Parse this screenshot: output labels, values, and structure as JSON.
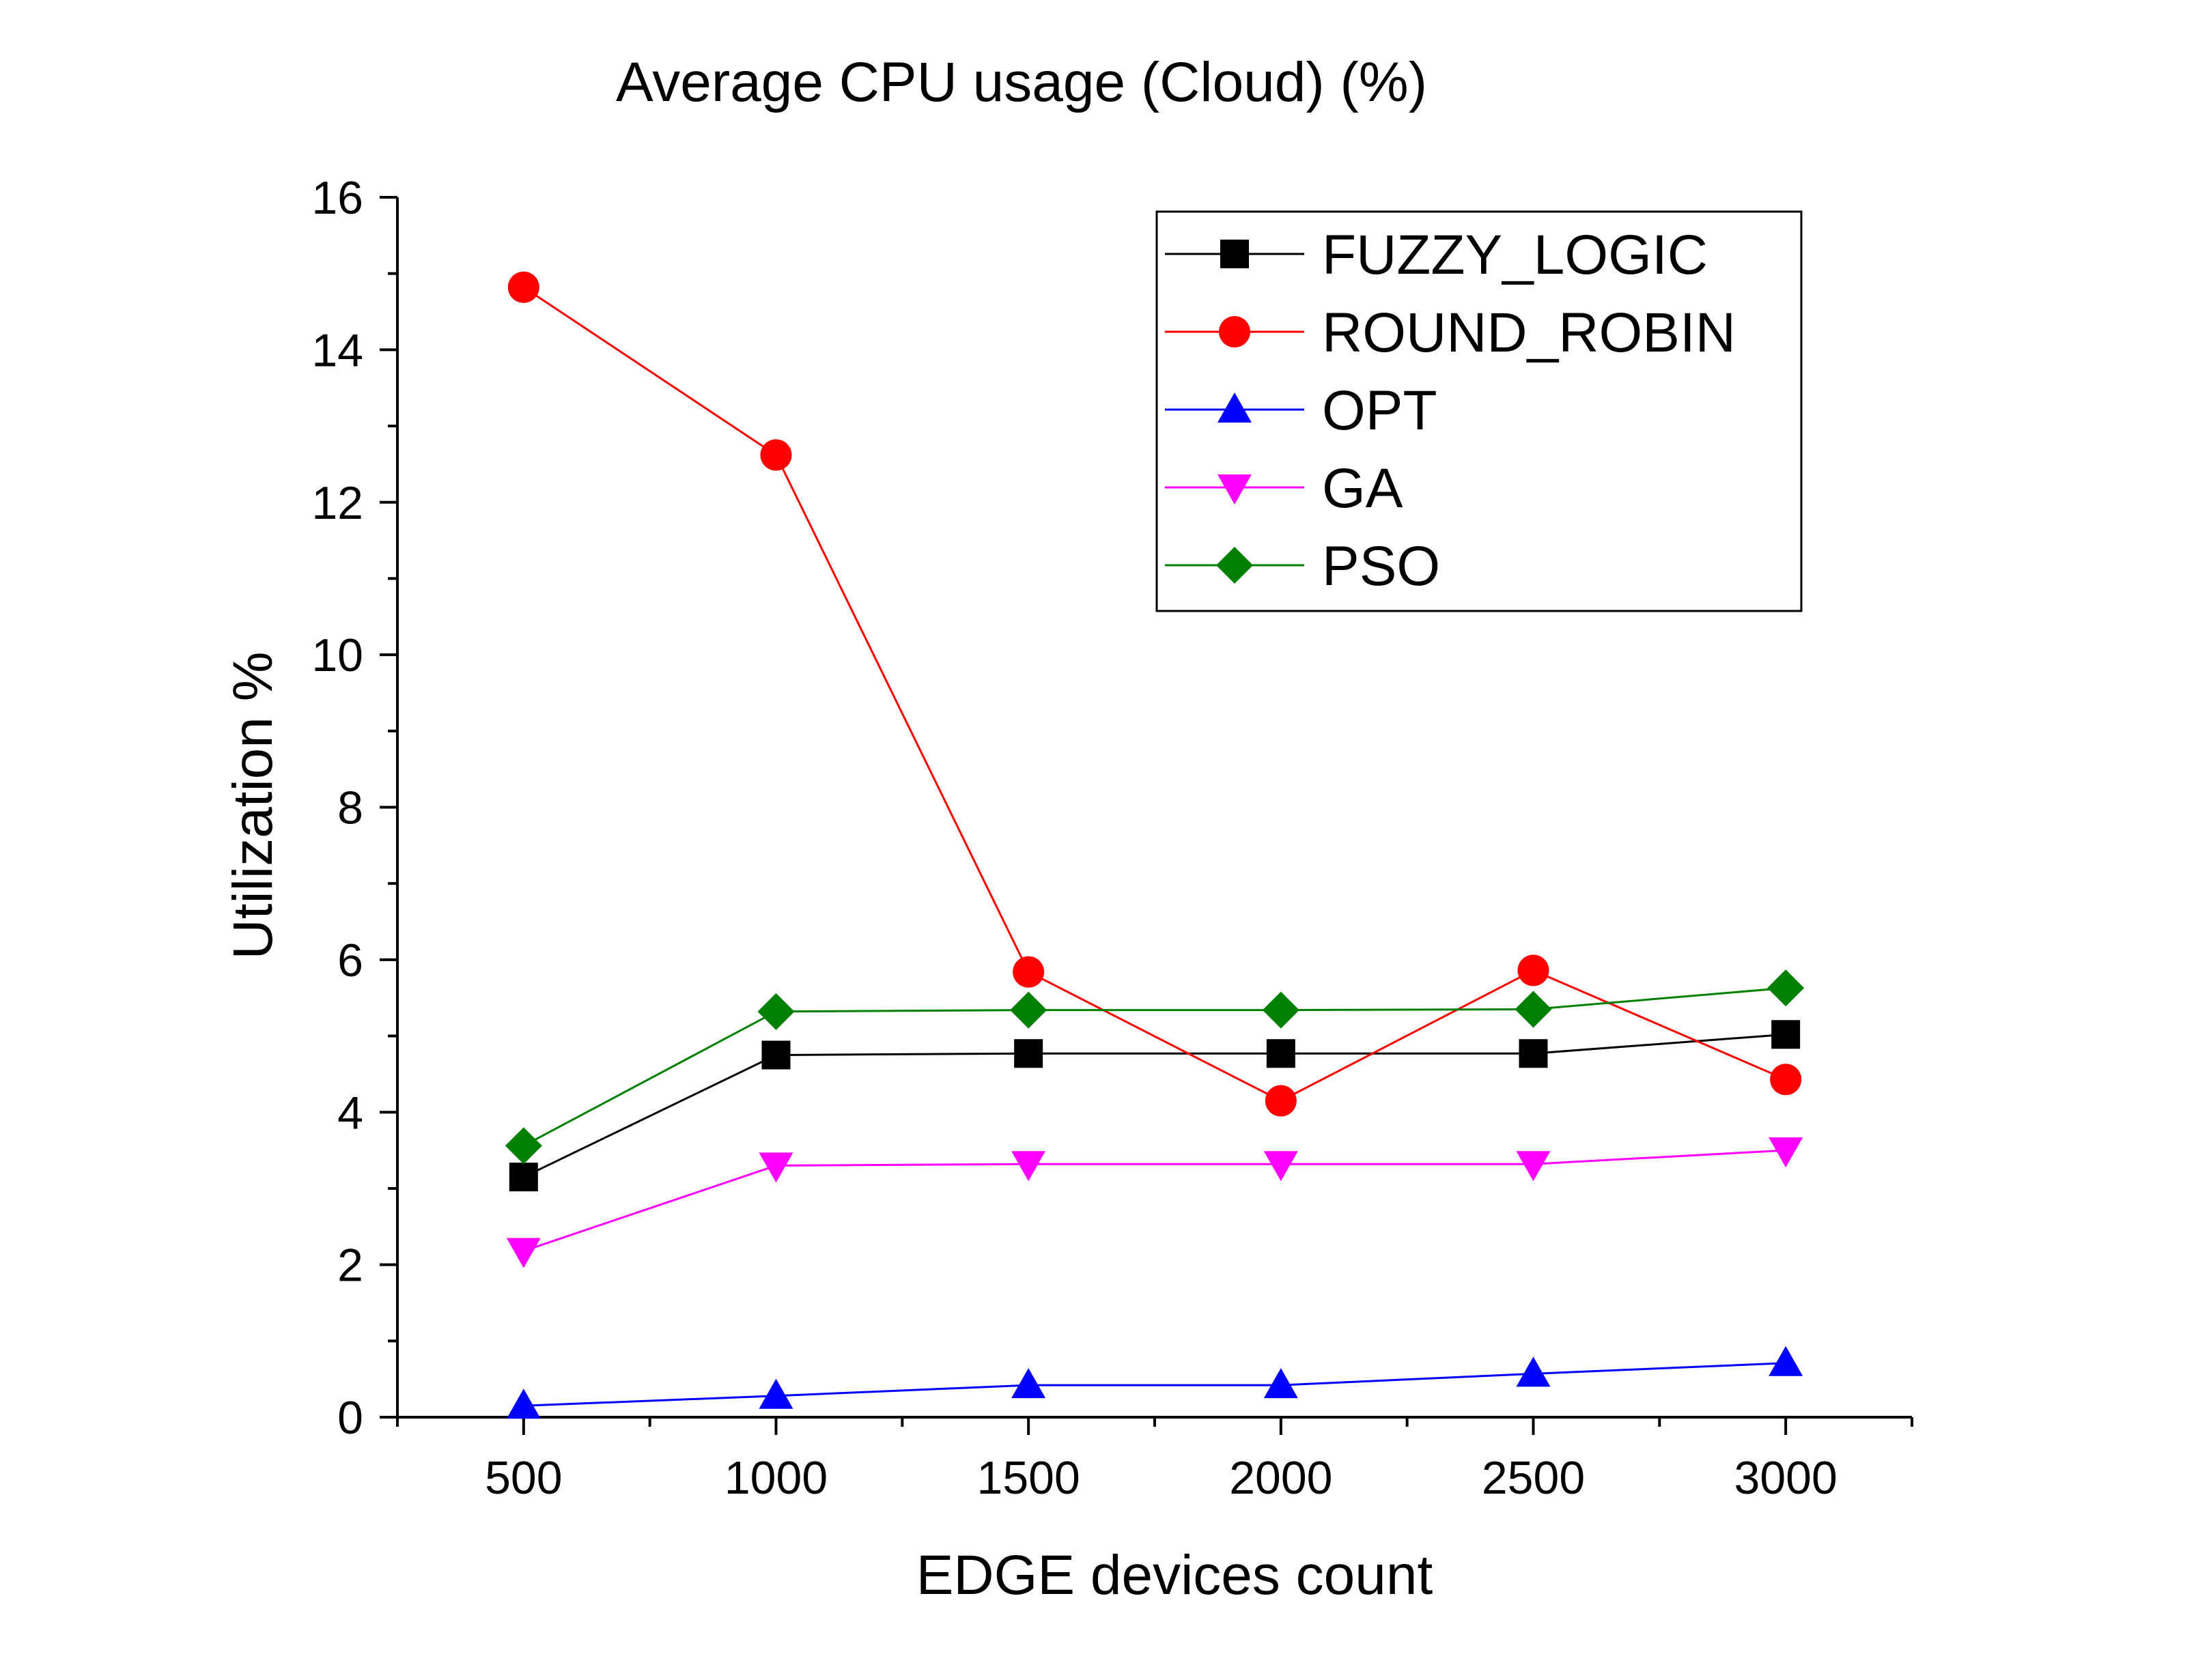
{
  "chart_data": {
    "type": "line",
    "title": "Average CPU usage (Cloud) (%)",
    "xlabel": "EDGE devices count",
    "ylabel": "Utilization %",
    "x": [
      500,
      1000,
      1500,
      2000,
      2500,
      3000
    ],
    "xlim": [
      250,
      3250
    ],
    "ylim": [
      0,
      16
    ],
    "xticks": [
      500,
      1000,
      1500,
      2000,
      2500,
      3000
    ],
    "yticks": [
      0,
      2,
      4,
      6,
      8,
      10,
      12,
      14,
      16
    ],
    "grid": false,
    "legend_position": "top-right",
    "series": [
      {
        "name": "FUZZY_LOGIC",
        "color": "#000000",
        "marker": "square",
        "values": [
          3.15,
          4.75,
          4.77,
          4.77,
          4.77,
          5.02
        ]
      },
      {
        "name": "ROUND_ROBIN",
        "color": "#ff0000",
        "marker": "circle",
        "values": [
          14.82,
          12.62,
          5.84,
          4.15,
          5.86,
          4.43
        ]
      },
      {
        "name": "OPT",
        "color": "#0000ff",
        "marker": "triangle-up",
        "values": [
          0.15,
          0.28,
          0.42,
          0.42,
          0.57,
          0.71
        ]
      },
      {
        "name": "GA",
        "color": "#ff00ff",
        "marker": "triangle-down",
        "values": [
          2.18,
          3.3,
          3.32,
          3.32,
          3.32,
          3.5
        ]
      },
      {
        "name": "PSO",
        "color": "#008000",
        "marker": "diamond",
        "values": [
          3.56,
          5.32,
          5.34,
          5.34,
          5.35,
          5.63
        ]
      }
    ]
  }
}
